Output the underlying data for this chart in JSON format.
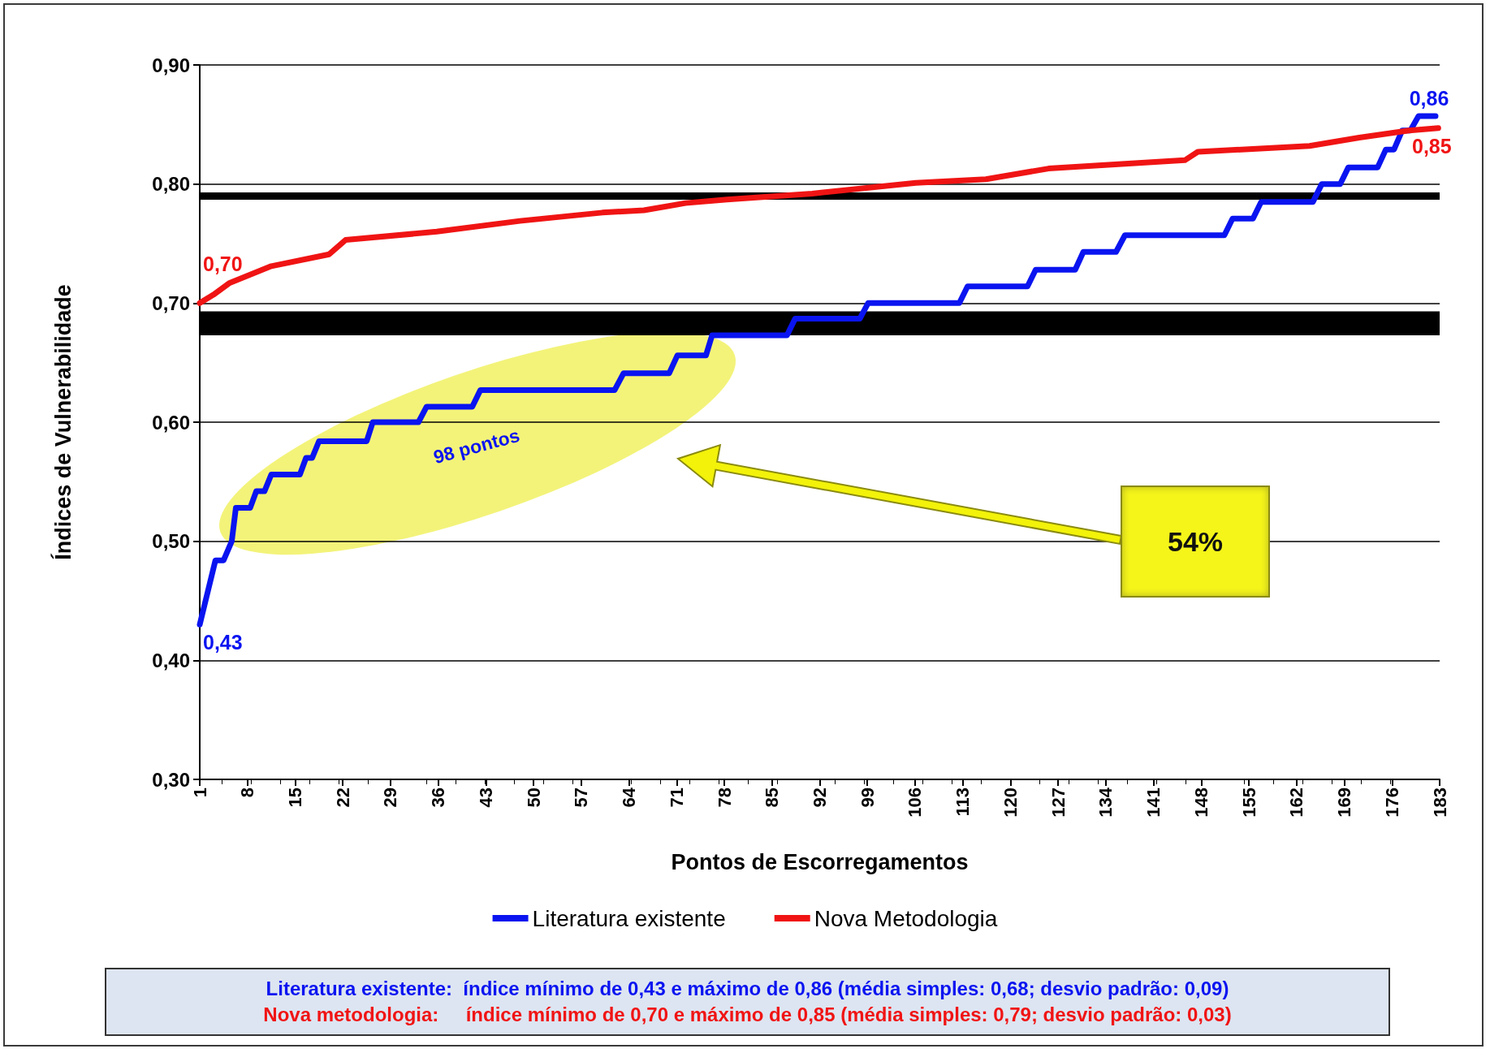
{
  "chart_data": {
    "type": "line",
    "xlabel": "Pontos de Escorregamentos",
    "ylabel": "Índices de Vulnerabilidade",
    "xlim": [
      1,
      183
    ],
    "xticks": [
      1,
      8,
      15,
      22,
      29,
      36,
      43,
      50,
      57,
      64,
      71,
      78,
      85,
      92,
      99,
      106,
      113,
      120,
      127,
      134,
      141,
      148,
      155,
      162,
      169,
      176,
      183
    ],
    "ylim": [
      0.3,
      0.9
    ],
    "yticks": [
      {
        "value": 0.3,
        "label": "0,30"
      },
      {
        "value": 0.4,
        "label": "0,40"
      },
      {
        "value": 0.5,
        "label": "0,50"
      },
      {
        "value": 0.6,
        "label": "0,60"
      },
      {
        "value": 0.7,
        "label": "0,70"
      },
      {
        "value": 0.8,
        "label": "0,80"
      },
      {
        "value": 0.9,
        "label": "0,90"
      }
    ],
    "grid": "y",
    "legend": "bottom",
    "marker": "none",
    "line_style": "solid",
    "series": [
      {
        "name": "Literatura existente",
        "color": "#0a14f0",
        "x": [
          1,
          3.3,
          4.5,
          5.7,
          6.3,
          8.4,
          9.3,
          10.5,
          11.5,
          15.7,
          16.6,
          17.5,
          18.5,
          25.5,
          26.4,
          33.1,
          34.3,
          41,
          42.2,
          61.9,
          63.2,
          69.9,
          71.1,
          75.3,
          76.2,
          87.2,
          88.4,
          97.9,
          99.1,
          112.5,
          113.7,
          122.5,
          123.7,
          129.5,
          130.7,
          135.5,
          136.8,
          151.4,
          152.6,
          155.6,
          156.8,
          164.4,
          165.7,
          168.4,
          169.6,
          173.9,
          175.1,
          176.3,
          177.5,
          178.7,
          179.9,
          182.4
        ],
        "values": [
          0.43,
          0.484,
          0.484,
          0.5,
          0.528,
          0.528,
          0.542,
          0.542,
          0.556,
          0.556,
          0.57,
          0.57,
          0.584,
          0.584,
          0.6,
          0.6,
          0.613,
          0.613,
          0.627,
          0.627,
          0.641,
          0.641,
          0.656,
          0.656,
          0.673,
          0.673,
          0.687,
          0.687,
          0.7,
          0.7,
          0.714,
          0.714,
          0.728,
          0.728,
          0.743,
          0.743,
          0.757,
          0.757,
          0.771,
          0.771,
          0.785,
          0.785,
          0.8,
          0.8,
          0.814,
          0.814,
          0.829,
          0.829,
          0.845,
          0.845,
          0.857,
          0.857
        ],
        "value_labels": [
          "0,43",
          null,
          null,
          null,
          null,
          null,
          null,
          null,
          null,
          null,
          null,
          null,
          null,
          null,
          null,
          null,
          null,
          null,
          null,
          null,
          null,
          null,
          null,
          null,
          null,
          null,
          null,
          null,
          null,
          null,
          null,
          null,
          null,
          null,
          null,
          null,
          null,
          null,
          null,
          null,
          null,
          null,
          null,
          null,
          null,
          null,
          null,
          null,
          null,
          null,
          null,
          "0,86"
        ]
      },
      {
        "name": "Nova Metodologia",
        "color": "#f01414",
        "x": [
          1,
          3,
          5.4,
          11.5,
          20,
          22.4,
          35.8,
          48,
          60.1,
          66.2,
          72.3,
          78.4,
          90.9,
          106.1,
          116.4,
          125.6,
          145.6,
          147.5,
          163.9,
          171.2,
          178.5,
          182.8
        ],
        "values": [
          0.7,
          0.707,
          0.717,
          0.731,
          0.741,
          0.753,
          0.76,
          0.769,
          0.776,
          0.778,
          0.784,
          0.787,
          0.792,
          0.801,
          0.804,
          0.813,
          0.82,
          0.827,
          0.832,
          0.839,
          0.845,
          0.847
        ],
        "value_labels": [
          "0,70",
          null,
          null,
          null,
          null,
          null,
          null,
          null,
          null,
          null,
          null,
          null,
          null,
          null,
          null,
          null,
          null,
          null,
          null,
          null,
          null,
          "0,85"
        ]
      }
    ],
    "ref_lines": [
      {
        "axis": "y",
        "value": 0.79,
        "color": "#000000"
      }
    ],
    "bands": [
      {
        "axis": "y",
        "from": 0.673,
        "to": 0.693,
        "color": "#000000"
      }
    ],
    "annotations": [
      "98 pontos",
      "54%",
      "Literatura existente:  índice mínimo de 0,43 e máximo de 0,86 (média simples: 0,68; desvio padrão: 0,09)",
      "Nova metodologia:     índice mínimo de 0,70 e máximo de 0,85 (média simples: 0,79; desvio padrão: 0,03)"
    ]
  }
}
